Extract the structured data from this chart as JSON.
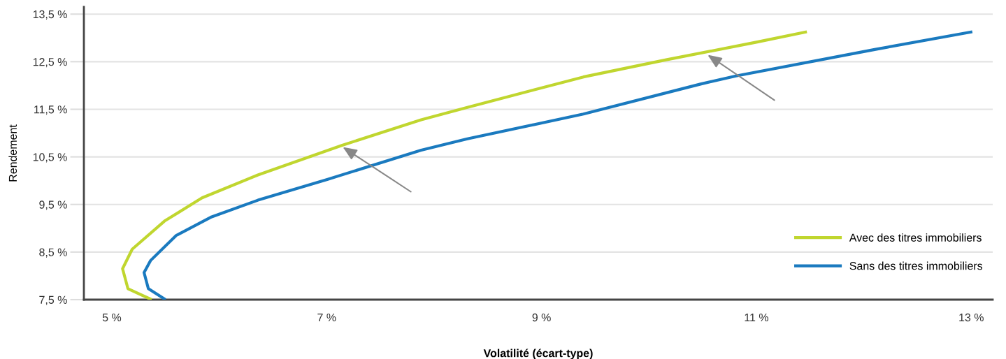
{
  "chart_data": {
    "type": "line",
    "xlabel": "Volatilité (écart-type)",
    "ylabel": "Rendement",
    "xlim": [
      4.74,
      13.2
    ],
    "ylim": [
      7.5,
      13.65
    ],
    "xticks": [
      {
        "value": 5,
        "label": "5 %"
      },
      {
        "value": 7,
        "label": "7 %"
      },
      {
        "value": 9,
        "label": "9 %"
      },
      {
        "value": 11,
        "label": "11 %"
      },
      {
        "value": 13,
        "label": "13 %"
      }
    ],
    "yticks": [
      {
        "value": 7.5,
        "label": "7,5 %"
      },
      {
        "value": 8.5,
        "label": "8,5 %"
      },
      {
        "value": 9.5,
        "label": "9,5 %"
      },
      {
        "value": 10.5,
        "label": "10,5 %"
      },
      {
        "value": 11.5,
        "label": "11,5 %"
      },
      {
        "value": 12.5,
        "label": "12,5 %"
      },
      {
        "value": 13.5,
        "label": "13,5 %"
      }
    ],
    "grid": "y",
    "legend": "bottom right",
    "marker": "none",
    "line_style": "solid",
    "series": [
      {
        "name": "Avec des titres immobiliers",
        "color": "#c0d62f",
        "x": [
          5.37,
          5.15,
          5.1,
          5.19,
          5.49,
          5.84,
          6.36,
          7.14,
          7.88,
          8.31,
          9.39,
          10.16,
          11.0,
          11.47
        ],
        "values": [
          7.5,
          7.73,
          8.15,
          8.56,
          9.15,
          9.64,
          10.12,
          10.74,
          11.28,
          11.54,
          12.18,
          12.54,
          12.91,
          13.13
        ]
      },
      {
        "name": "Sans des titres immobiliers",
        "color": "#1a7abf",
        "x": [
          5.5,
          5.34,
          5.3,
          5.36,
          5.6,
          5.93,
          6.36,
          7.01,
          7.88,
          8.31,
          9.39,
          10.48,
          10.81,
          12.11,
          13.01
        ],
        "values": [
          7.5,
          7.73,
          8.07,
          8.32,
          8.85,
          9.24,
          9.59,
          10.03,
          10.64,
          10.88,
          11.4,
          12.03,
          12.2,
          12.76,
          13.13
        ]
      }
    ]
  }
}
